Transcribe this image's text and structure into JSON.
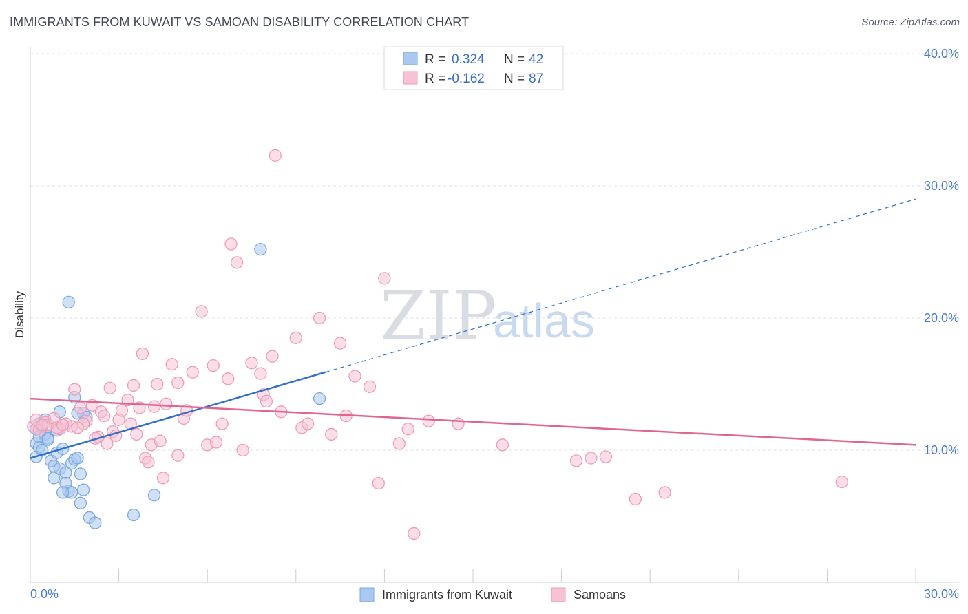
{
  "header": {
    "title": "IMMIGRANTS FROM KUWAIT VS SAMOAN DISABILITY CORRELATION CHART",
    "source": "Source: ZipAtlas.com"
  },
  "watermark": {
    "zip": "ZIP",
    "atlas": "atlas"
  },
  "chart_data": {
    "type": "scatter",
    "ylabel": "Disability",
    "xlim": [
      0,
      30
    ],
    "ylim": [
      0,
      40
    ],
    "x_tick_labels": [
      "0.0%",
      "30.0%"
    ],
    "y_ticks": [
      {
        "value": 10,
        "label": "10.0%"
      },
      {
        "value": 20,
        "label": "20.0%"
      },
      {
        "value": 30,
        "label": "30.0%"
      },
      {
        "value": 40,
        "label": "40.0%"
      }
    ],
    "grid": true,
    "legend": {
      "placement": "top-center",
      "rows": [
        {
          "r_label": "R =",
          "r_value": "0.324",
          "n_label": "N =",
          "n_value": "42"
        },
        {
          "r_label": "R =",
          "r_value": "-0.162",
          "n_label": "N =",
          "n_value": "87"
        }
      ]
    },
    "series": [
      {
        "name": "Immigrants from Kuwait",
        "color": "#7aa7e0",
        "fill": "#aac8f0",
        "line_color": "#2e6fcc",
        "trend": {
          "x0": 0.0,
          "y0": 9.4,
          "x1": 10.0,
          "y1": 15.9,
          "x_ext": 30.0,
          "y_ext": 29.0
        },
        "points": [
          [
            0.2,
            10.5
          ],
          [
            0.3,
            11.0
          ],
          [
            0.3,
            10.2
          ],
          [
            0.2,
            9.5
          ],
          [
            0.4,
            10.0
          ],
          [
            0.5,
            11.2
          ],
          [
            0.6,
            10.9
          ],
          [
            0.6,
            10.8
          ],
          [
            0.5,
            12.3
          ],
          [
            0.4,
            11.8
          ],
          [
            0.7,
            9.2
          ],
          [
            0.8,
            8.8
          ],
          [
            0.9,
            9.8
          ],
          [
            0.8,
            7.9
          ],
          [
            1.0,
            8.6
          ],
          [
            1.1,
            10.1
          ],
          [
            1.2,
            8.3
          ],
          [
            1.3,
            6.9
          ],
          [
            1.4,
            9.0
          ],
          [
            1.5,
            9.3
          ],
          [
            1.6,
            9.4
          ],
          [
            1.7,
            8.2
          ],
          [
            1.8,
            12.8
          ],
          [
            1.9,
            12.5
          ],
          [
            1.0,
            12.9
          ],
          [
            1.2,
            7.5
          ],
          [
            1.5,
            14.0
          ],
          [
            1.6,
            12.8
          ],
          [
            1.4,
            6.8
          ],
          [
            1.7,
            6.0
          ],
          [
            1.8,
            7.0
          ],
          [
            2.0,
            4.9
          ],
          [
            2.2,
            4.5
          ],
          [
            3.5,
            5.1
          ],
          [
            4.2,
            6.6
          ],
          [
            1.1,
            6.8
          ],
          [
            1.3,
            21.2
          ],
          [
            7.8,
            25.2
          ],
          [
            9.8,
            13.9
          ],
          [
            0.9,
            11.5
          ],
          [
            0.3,
            12.0
          ],
          [
            0.2,
            11.6
          ]
        ]
      },
      {
        "name": "Samoans",
        "color": "#f09ab5",
        "fill": "#f7c2d3",
        "line_color": "#e0648f",
        "trend": {
          "x0": 0.0,
          "y0": 13.9,
          "x1": 30.0,
          "y1": 10.4
        },
        "points": [
          [
            0.1,
            11.8
          ],
          [
            0.2,
            12.3
          ],
          [
            0.3,
            11.5
          ],
          [
            0.5,
            12.1
          ],
          [
            0.6,
            11.9
          ],
          [
            0.8,
            12.4
          ],
          [
            1.0,
            11.6
          ],
          [
            1.2,
            12.0
          ],
          [
            1.4,
            11.8
          ],
          [
            1.5,
            14.6
          ],
          [
            1.7,
            13.2
          ],
          [
            1.9,
            12.2
          ],
          [
            2.1,
            13.4
          ],
          [
            2.3,
            11.0
          ],
          [
            2.4,
            12.9
          ],
          [
            2.5,
            12.6
          ],
          [
            2.6,
            10.5
          ],
          [
            2.7,
            14.7
          ],
          [
            2.8,
            11.4
          ],
          [
            2.9,
            11.1
          ],
          [
            3.0,
            12.3
          ],
          [
            3.1,
            13.0
          ],
          [
            3.3,
            13.8
          ],
          [
            3.4,
            12.0
          ],
          [
            3.5,
            14.9
          ],
          [
            3.6,
            11.2
          ],
          [
            3.7,
            13.2
          ],
          [
            3.8,
            17.3
          ],
          [
            3.9,
            9.4
          ],
          [
            4.0,
            9.1
          ],
          [
            4.1,
            10.4
          ],
          [
            4.2,
            13.3
          ],
          [
            4.3,
            15.0
          ],
          [
            4.4,
            10.7
          ],
          [
            4.5,
            7.9
          ],
          [
            4.6,
            13.5
          ],
          [
            4.8,
            16.5
          ],
          [
            5.0,
            9.6
          ],
          [
            5.0,
            15.1
          ],
          [
            5.2,
            12.4
          ],
          [
            5.3,
            13.0
          ],
          [
            5.5,
            15.9
          ],
          [
            5.8,
            20.5
          ],
          [
            6.0,
            10.4
          ],
          [
            6.2,
            16.4
          ],
          [
            6.3,
            10.6
          ],
          [
            6.5,
            12.0
          ],
          [
            6.7,
            15.4
          ],
          [
            6.8,
            25.6
          ],
          [
            7.0,
            24.2
          ],
          [
            7.2,
            10.0
          ],
          [
            7.5,
            16.6
          ],
          [
            7.8,
            15.8
          ],
          [
            7.9,
            14.2
          ],
          [
            8.0,
            13.7
          ],
          [
            8.2,
            17.1
          ],
          [
            8.3,
            32.3
          ],
          [
            8.5,
            12.9
          ],
          [
            9.0,
            18.5
          ],
          [
            9.2,
            11.7
          ],
          [
            9.4,
            12.0
          ],
          [
            9.8,
            20.0
          ],
          [
            10.2,
            11.2
          ],
          [
            10.5,
            18.1
          ],
          [
            10.7,
            12.6
          ],
          [
            11.0,
            15.6
          ],
          [
            11.5,
            14.8
          ],
          [
            11.8,
            7.5
          ],
          [
            12.0,
            23.0
          ],
          [
            12.5,
            10.5
          ],
          [
            12.8,
            11.6
          ],
          [
            13.0,
            3.7
          ],
          [
            13.5,
            12.2
          ],
          [
            14.5,
            12.0
          ],
          [
            16.0,
            10.4
          ],
          [
            18.5,
            9.2
          ],
          [
            19.0,
            9.4
          ],
          [
            19.5,
            9.5
          ],
          [
            20.5,
            6.3
          ],
          [
            21.5,
            6.8
          ],
          [
            27.5,
            7.6
          ],
          [
            1.8,
            12.0
          ],
          [
            2.2,
            10.9
          ],
          [
            0.4,
            11.9
          ],
          [
            0.9,
            11.7
          ],
          [
            1.1,
            11.9
          ],
          [
            1.6,
            11.7
          ]
        ]
      }
    ]
  }
}
